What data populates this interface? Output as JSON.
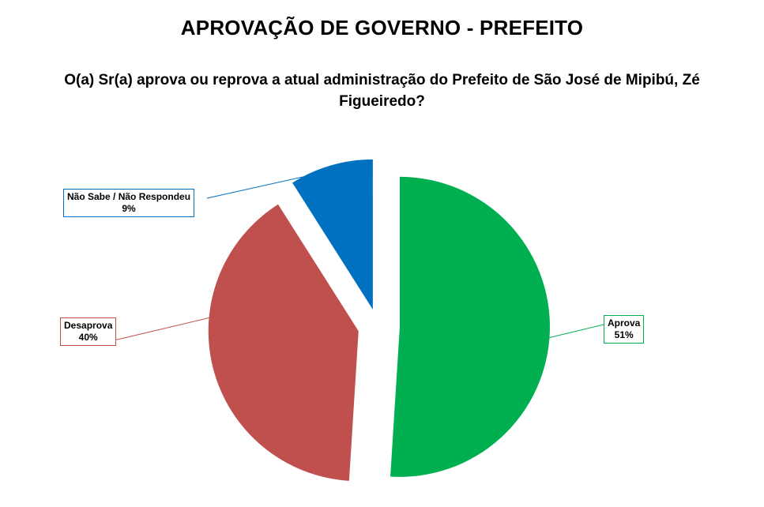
{
  "header": {
    "title": "APROVAÇÃO DE GOVERNO - PREFEITO",
    "question": "O(a) Sr(a) aprova ou reprova a atual administração do Prefeito de São José de Mipibú, Zé Figueiredo?"
  },
  "chart_data": {
    "type": "pie",
    "title": "APROVAÇÃO DE GOVERNO - PREFEITO",
    "subtitle": "O(a) Sr(a) aprova ou reprova a atual administração do Prefeito de São José de Mipibú, Zé Figueiredo?",
    "exploded": true,
    "start_angle_deg": 0,
    "direction": "clockwise",
    "slices": [
      {
        "label": "Aprova",
        "value": 51,
        "display": "51%",
        "color": "#00B050"
      },
      {
        "label": "Desaprova",
        "value": 40,
        "display": "40%",
        "color": "#C0504D"
      },
      {
        "label": "Não Sabe / Não Respondeu",
        "value": 9,
        "display": "9%",
        "color": "#0070C0"
      }
    ]
  }
}
